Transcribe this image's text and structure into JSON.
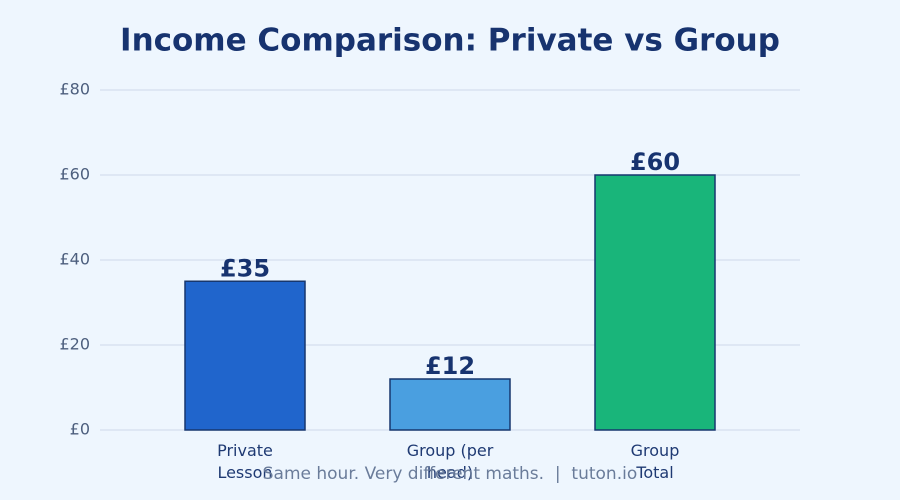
{
  "chart_data": {
    "type": "bar",
    "title": "Income Comparison: Private vs Group",
    "categories": [
      "Private Lesson",
      "Group (per head)",
      "Group Total"
    ],
    "values": [
      35,
      12,
      60
    ],
    "value_labels": [
      "£35",
      "£12",
      "£60"
    ],
    "colors": [
      "#2065cc",
      "#4a9fe0",
      "#19b57a"
    ],
    "ylim": [
      0,
      80
    ],
    "yticks": [
      {
        "value": 0,
        "label": "£0"
      },
      {
        "value": 20,
        "label": "£20"
      },
      {
        "value": 40,
        "label": "£40"
      },
      {
        "value": 60,
        "label": "£60"
      },
      {
        "value": 80,
        "label": "£80"
      }
    ],
    "grid": true,
    "note": "Same hour. Very different maths.  |  tuton.io"
  }
}
